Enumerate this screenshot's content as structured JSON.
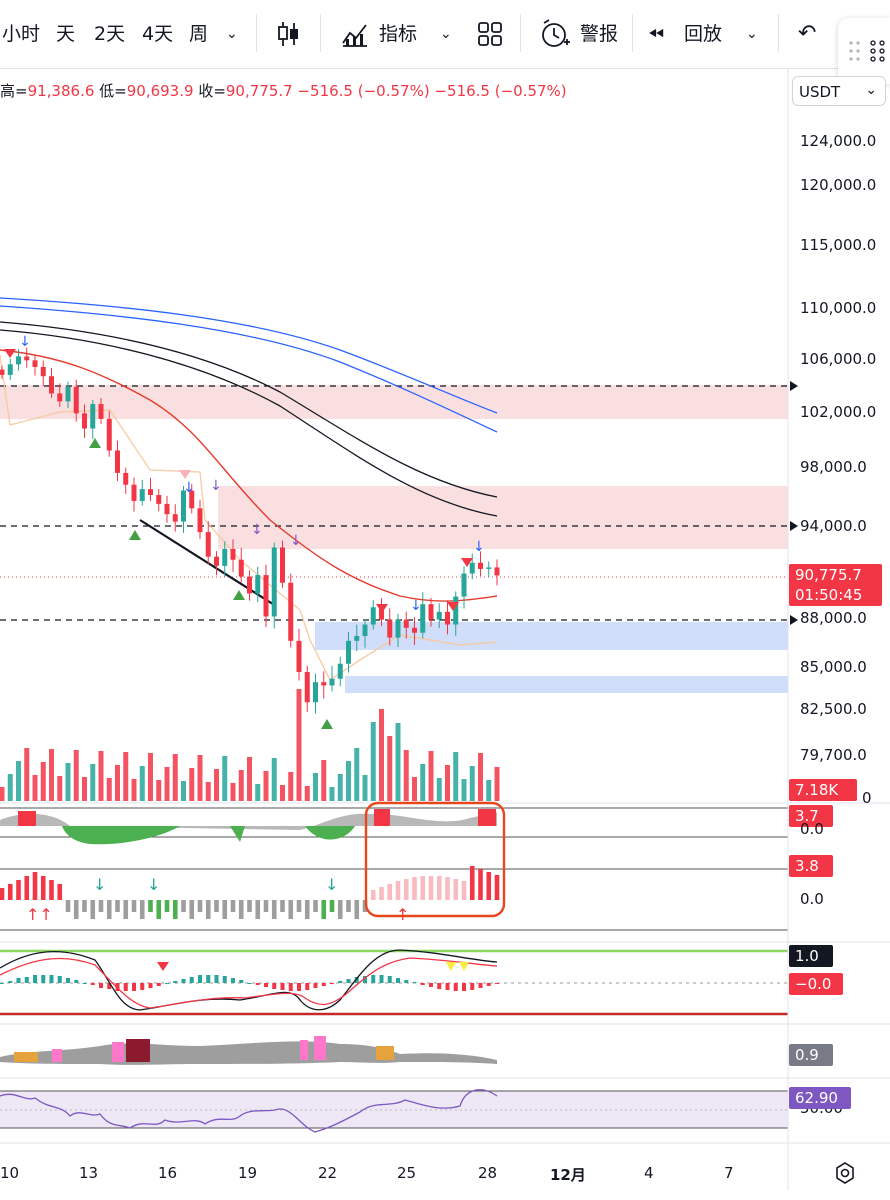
{
  "toolbar": {
    "intervals": [
      "小时",
      "天",
      "2天",
      "4天",
      "周"
    ],
    "indicators_label": "指标",
    "alert_label": "警报",
    "replay_label": "回放"
  },
  "ohlc": {
    "high_label": "高=",
    "high_value": "91,386.6",
    "low_label": "低=",
    "low_value": "90,693.9",
    "close_label": "收=",
    "close_value": "90,775.7",
    "change": "−516.5 (−0.57%)",
    "change2": "−516.5 (−0.57%)"
  },
  "currency": "USDT",
  "price_axis": [
    "124,000.0",
    "120,000.0",
    "115,000.0",
    "110,000.0",
    "106,000.0",
    "102,000.0",
    "98,000.0",
    "94,000.0",
    "88,000.0",
    "85,000.0",
    "82,500.0",
    "79,700.0",
    "0"
  ],
  "tags": {
    "last_price": "90,775.7",
    "countdown": "01:50:45",
    "volume": "7.18K",
    "ind1": "3.7",
    "ind1_zero": "0.0",
    "ind2": "3.8",
    "ind2_zero": "0.0",
    "ind3_top": "1.0",
    "ind3": "−0.0",
    "ind4": "0.9",
    "rsi": "62.90",
    "rsi_mid": "50.00"
  },
  "date_axis": [
    "10",
    "13",
    "16",
    "19",
    "22",
    "25",
    "28",
    "12月",
    "4",
    "7"
  ],
  "colors": {
    "up": "#26a69a",
    "down": "#f23645",
    "accent": "#2962ff",
    "highlight_box": "#e8471c"
  },
  "chart_data": {
    "type": "candlestick",
    "series": [
      {
        "name": "price",
        "values": [
          104800,
          105600,
          106200,
          105900,
          105400,
          104700,
          103400,
          102800,
          103900,
          101900,
          100800,
          102600,
          101500,
          99200,
          97600,
          96800,
          95700,
          96500,
          96100,
          95500,
          94800,
          94300,
          96400,
          95200,
          93600,
          92000,
          91400,
          92500,
          91800,
          90700,
          89600,
          90800,
          88100,
          92600,
          90300,
          86600,
          84700,
          82900,
          84100,
          83900,
          84300,
          85200,
          86600,
          86900,
          87600,
          88700,
          87900,
          86800,
          87900,
          87400,
          87100,
          88900,
          87900,
          88400,
          87600,
          89400,
          90900,
          91600,
          91200,
          91300,
          90775.7
        ]
      }
    ],
    "ylim": [
      79700,
      124000
    ]
  }
}
